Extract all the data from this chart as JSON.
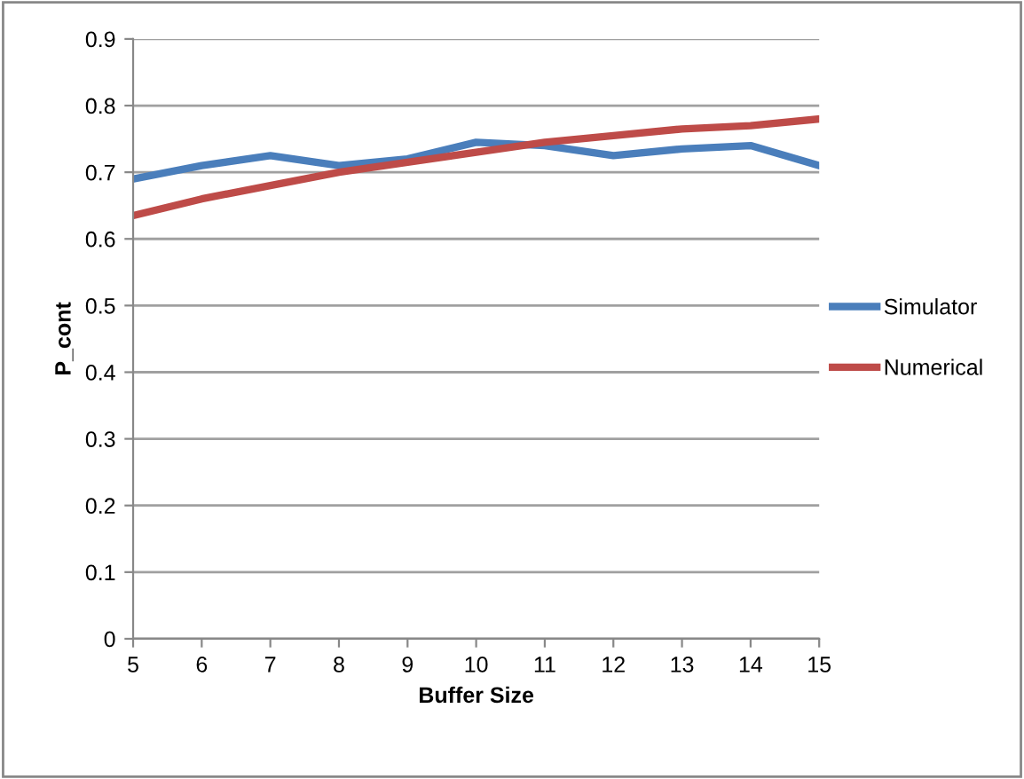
{
  "chart_data": {
    "type": "line",
    "xlabel": "Buffer Size",
    "ylabel": "P_cont",
    "x": [
      5,
      6,
      7,
      8,
      9,
      10,
      11,
      12,
      13,
      14,
      15
    ],
    "series": [
      {
        "name": "Simulator",
        "color": "#4a7ebb",
        "values": [
          0.69,
          0.71,
          0.725,
          0.71,
          0.72,
          0.745,
          0.74,
          0.725,
          0.735,
          0.74,
          0.71
        ]
      },
      {
        "name": "Numerical",
        "color": "#be4b48",
        "values": [
          0.635,
          0.66,
          0.68,
          0.7,
          0.715,
          0.73,
          0.745,
          0.755,
          0.765,
          0.77,
          0.78
        ]
      }
    ],
    "xlim": [
      5,
      15
    ],
    "xticks": [
      5,
      6,
      7,
      8,
      9,
      10,
      11,
      12,
      13,
      14,
      15
    ],
    "ylim": [
      0,
      0.9
    ],
    "yticks": [
      0,
      0.1,
      0.2,
      0.3,
      0.4,
      0.5,
      0.6,
      0.7,
      0.8,
      0.9
    ],
    "grid": "y",
    "legend": "right",
    "marker": "none",
    "line_style": "solid"
  }
}
